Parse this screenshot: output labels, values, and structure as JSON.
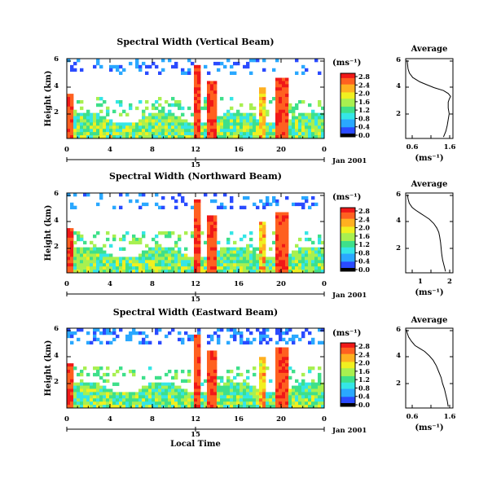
{
  "figure": {
    "date_label": "Jan 2001",
    "day_label": "15",
    "xlabel_bottom": "Local Time",
    "unit_label": "(ms⁻¹)"
  },
  "colors": {
    "colormap": [
      "#000000",
      "#1a1aa0",
      "#2a4bff",
      "#2aa8ff",
      "#35e6e6",
      "#3ee08a",
      "#a8f050",
      "#f0f020",
      "#ffb020",
      "#ff6020",
      "#f01818"
    ]
  },
  "chart_data": [
    {
      "type": "heatmap",
      "title": "Spectral Width (Vertical Beam)",
      "ylabel": "Height (km)",
      "xlim": [
        0,
        24
      ],
      "ylim": [
        0.5,
        6
      ],
      "xticks": [
        "0",
        "4",
        "8",
        "12",
        "16",
        "20",
        "0"
      ],
      "yticks": [
        "2",
        "4",
        "6"
      ],
      "colorbar": {
        "label": "(ms⁻¹)",
        "ticks": [
          "0.0",
          "0.4",
          "0.8",
          "1.2",
          "1.6",
          "2.0",
          "2.4",
          "2.8"
        ],
        "range": [
          0,
          2.8
        ]
      }
    },
    {
      "type": "line",
      "title": "Average",
      "xlabel": "(ms⁻¹)",
      "xticks": [
        "0.6",
        "1.6"
      ],
      "yticks": [
        "2",
        "4",
        "6"
      ],
      "xlim": [
        0.6,
        1.6
      ],
      "ylim": [
        0.5,
        6
      ],
      "series": [
        {
          "x": [
            1.4,
            1.45,
            1.48,
            1.5,
            1.52,
            1.5,
            1.5,
            1.52,
            1.55,
            1.5,
            1.4,
            1.2,
            1.05,
            0.9,
            0.75,
            0.68,
            0.65,
            0.64,
            0.63
          ],
          "y": [
            0.6,
            1.0,
            1.4,
            1.8,
            2.2,
            2.6,
            3.0,
            3.2,
            3.4,
            3.6,
            3.8,
            4.0,
            4.2,
            4.4,
            4.7,
            5.0,
            5.3,
            5.6,
            5.9
          ]
        }
      ]
    },
    {
      "type": "heatmap",
      "title": "Spectral Width (Northward Beam)",
      "ylabel": "Height (km)",
      "xlim": [
        0,
        24
      ],
      "ylim": [
        0.5,
        6
      ],
      "xticks": [
        "0",
        "4",
        "8",
        "12",
        "16",
        "20",
        "0"
      ],
      "yticks": [
        "2",
        "4",
        "6"
      ],
      "colorbar": {
        "label": "(ms⁻¹)",
        "ticks": [
          "0.0",
          "0.4",
          "0.8",
          "1.2",
          "1.6",
          "2.0",
          "2.4",
          "2.8"
        ],
        "range": [
          0,
          2.8
        ]
      }
    },
    {
      "type": "line",
      "title": "Average",
      "xlabel": "(ms⁻¹)",
      "xticks": [
        "1",
        "2"
      ],
      "yticks": [
        "2",
        "4",
        "6"
      ],
      "xlim": [
        0.5,
        2.1
      ],
      "ylim": [
        0.5,
        6
      ],
      "series": [
        {
          "x": [
            1.85,
            1.8,
            1.75,
            1.72,
            1.7,
            1.68,
            1.65,
            1.62,
            1.55,
            1.45,
            1.3,
            1.15,
            1.0,
            0.85,
            0.72,
            0.62,
            0.58,
            0.56
          ],
          "y": [
            0.6,
            1.0,
            1.4,
            1.8,
            2.2,
            2.6,
            3.0,
            3.3,
            3.6,
            3.9,
            4.2,
            4.4,
            4.6,
            4.8,
            5.0,
            5.3,
            5.6,
            5.9
          ]
        }
      ]
    },
    {
      "type": "heatmap",
      "title": "Spectral Width (Eastward Beam)",
      "ylabel": "Height (km)",
      "xlim": [
        0,
        24
      ],
      "ylim": [
        0.5,
        6
      ],
      "xticks": [
        "0",
        "4",
        "8",
        "12",
        "16",
        "20",
        "0"
      ],
      "yticks": [
        "2",
        "4",
        "6"
      ],
      "colorbar": {
        "label": "(ms⁻¹)",
        "ticks": [
          "0.0",
          "0.4",
          "0.8",
          "1.2",
          "1.6",
          "2.0",
          "2.4",
          "2.8"
        ],
        "range": [
          0,
          2.8
        ]
      }
    },
    {
      "type": "line",
      "title": "Average",
      "xlabel": "(ms⁻¹)",
      "xticks": [
        "0.6",
        "1.6"
      ],
      "yticks": [
        "2",
        "4",
        "6"
      ],
      "xlim": [
        0.6,
        1.6
      ],
      "ylim": [
        0.5,
        6
      ],
      "series": [
        {
          "x": [
            1.5,
            1.48,
            1.45,
            1.42,
            1.38,
            1.35,
            1.3,
            1.25,
            1.18,
            1.1,
            1.0,
            0.9,
            0.8,
            0.72,
            0.66,
            0.63,
            0.62
          ],
          "y": [
            0.6,
            1.0,
            1.4,
            1.8,
            2.2,
            2.6,
            3.0,
            3.4,
            3.8,
            4.1,
            4.4,
            4.6,
            4.8,
            5.1,
            5.4,
            5.7,
            5.9
          ]
        }
      ]
    }
  ]
}
